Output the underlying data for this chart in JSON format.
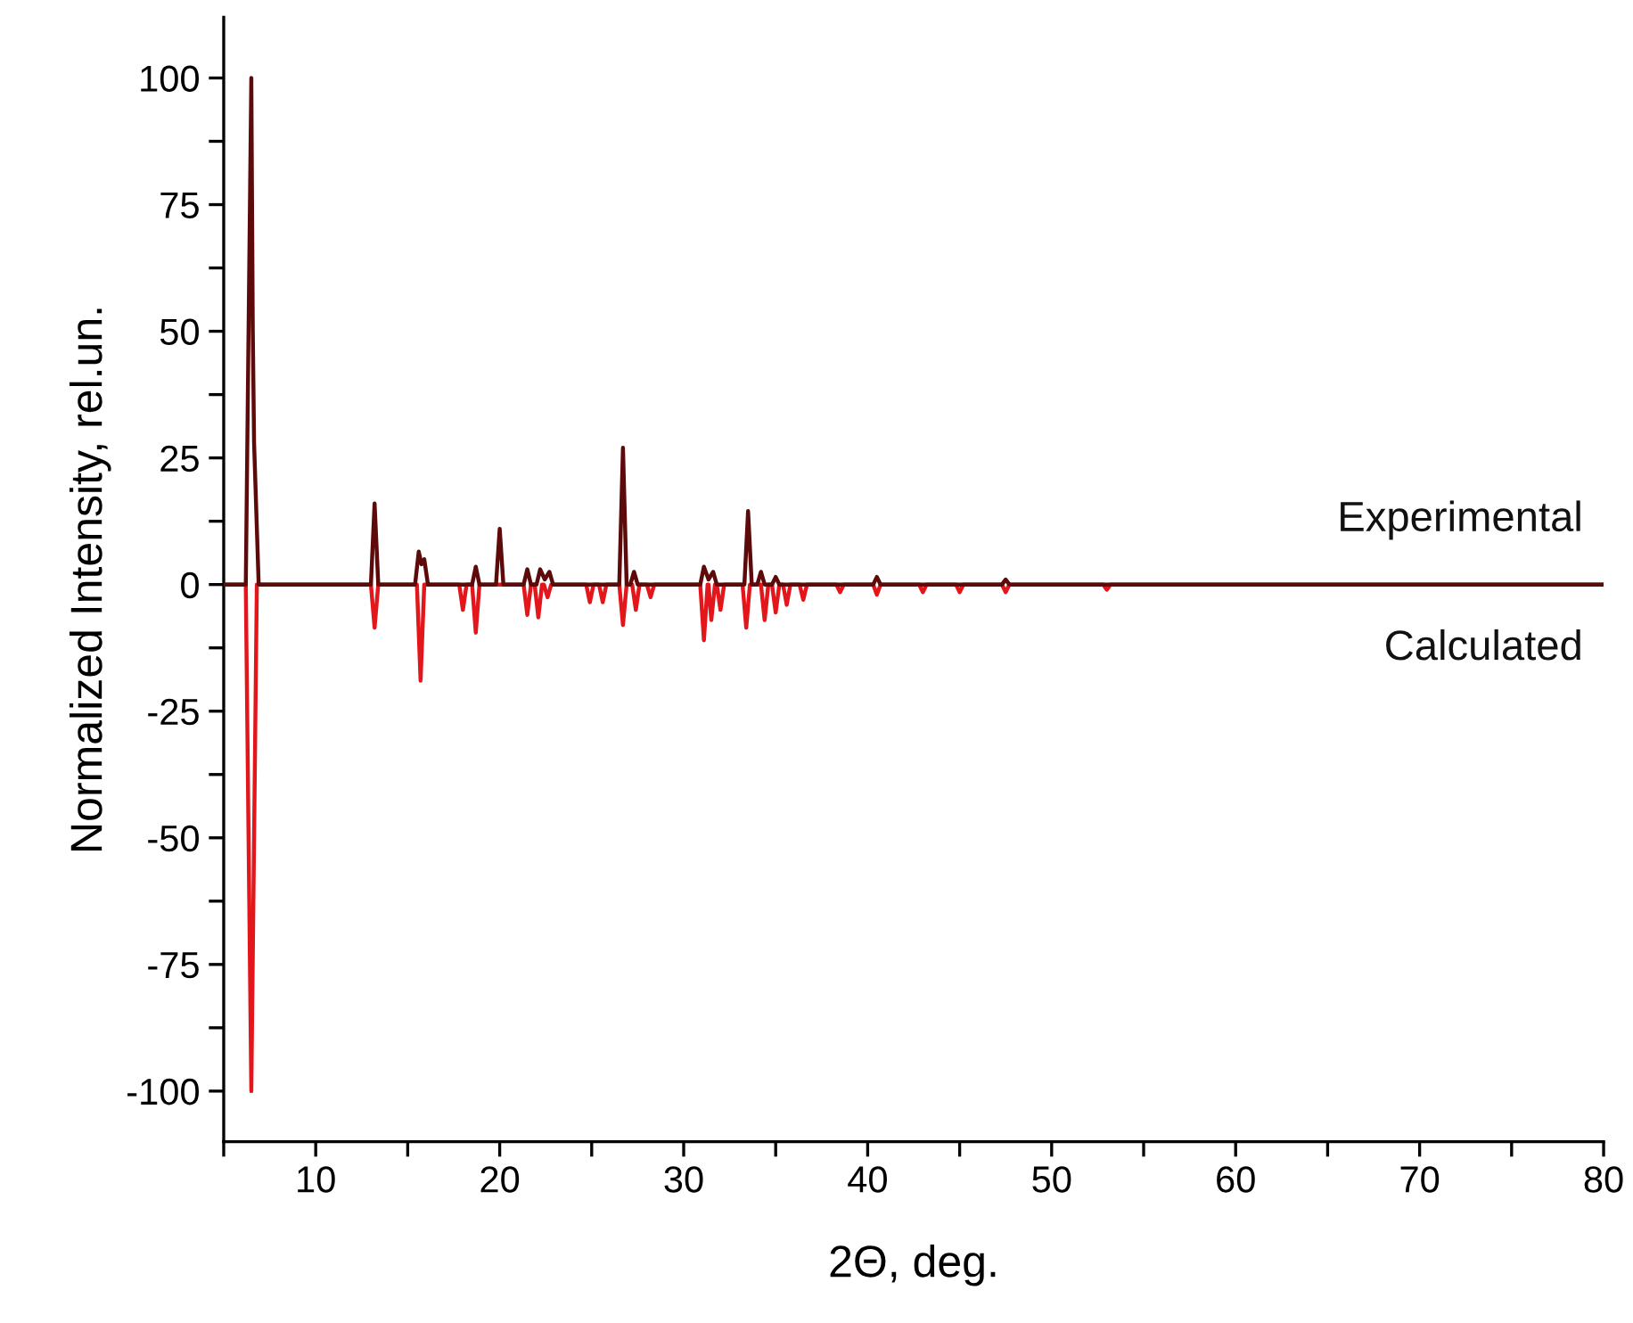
{
  "chart_data": {
    "type": "line",
    "xlabel": "2Θ, deg.",
    "ylabel": "Normalized Intensity, rel.un.",
    "xlim": [
      5,
      80
    ],
    "ylim": [
      -110,
      112
    ],
    "xticks": [
      {
        "value": 5,
        "label": null
      },
      10,
      {
        "value": 15,
        "label": null
      },
      20,
      {
        "value": 25,
        "label": null
      },
      30,
      {
        "value": 35,
        "label": null
      },
      40,
      {
        "value": 45,
        "label": null
      },
      50,
      {
        "value": 55,
        "label": null
      },
      60,
      {
        "value": 65,
        "label": null
      },
      70,
      {
        "value": 75,
        "label": null
      },
      80
    ],
    "yticks": [
      -100,
      {
        "value": -87.5,
        "label": null
      },
      -75,
      {
        "value": -62.5,
        "label": null
      },
      -50,
      {
        "value": -37.5,
        "label": null
      },
      -25,
      {
        "value": -12.5,
        "label": null
      },
      0,
      {
        "value": 12.5,
        "label": null
      },
      25,
      {
        "value": 37.5,
        "label": null
      },
      50,
      {
        "value": 62.5,
        "label": null
      },
      75,
      {
        "value": 87.5,
        "label": null
      },
      100
    ],
    "grid": false,
    "legend": false,
    "line_style": "solid",
    "marker": "none",
    "series": [
      {
        "name": "Calculated",
        "color": "#e3161b",
        "x": [
          5,
          6.2,
          6.5,
          6.8,
          13.0,
          13.2,
          13.4,
          15.5,
          15.7,
          15.9,
          17.8,
          18.0,
          18.2,
          18.5,
          18.7,
          18.9,
          21.3,
          21.5,
          21.7,
          21.9,
          22.1,
          22.3,
          22.4,
          22.6,
          22.8,
          24.7,
          24.9,
          25.1,
          25.4,
          25.6,
          25.8,
          26.5,
          26.7,
          26.9,
          27.2,
          27.4,
          27.6,
          28.0,
          28.2,
          28.4,
          30.9,
          31.1,
          31.3,
          31.35,
          31.5,
          31.7,
          31.8,
          32.0,
          32.2,
          33.2,
          33.4,
          33.6,
          34.2,
          34.4,
          34.6,
          34.8,
          35.0,
          35.2,
          35.4,
          35.6,
          35.8,
          36.3,
          36.5,
          36.7,
          38.3,
          38.5,
          38.7,
          40.3,
          40.5,
          40.7,
          42.8,
          43,
          43.2,
          44.8,
          45,
          45.2,
          47.3,
          47.5,
          47.7,
          52.8,
          53,
          53.2,
          80
        ],
        "values": [
          0,
          0,
          -100,
          0,
          0,
          -8.5,
          0,
          0,
          -19,
          0,
          0,
          -5,
          0,
          0,
          -9.5,
          0,
          0,
          -6,
          0,
          0,
          -6.5,
          0,
          0,
          -2.5,
          0,
          0,
          -3.5,
          0,
          0,
          -3.5,
          0,
          0,
          -8,
          0,
          0,
          -5,
          0,
          0,
          -2.5,
          0,
          0,
          -11,
          0,
          0,
          -7,
          0,
          0,
          -5,
          0,
          0,
          -8.5,
          0,
          0,
          -7,
          0,
          0,
          -5.5,
          0,
          0,
          -4,
          0,
          0,
          -3,
          0,
          0,
          -1.5,
          0,
          0,
          -2,
          0,
          0,
          -1.5,
          0,
          0,
          -1.5,
          0,
          0,
          -1.5,
          0,
          0,
          -1,
          0,
          0
        ]
      },
      {
        "name": "Experimental",
        "color": "#5c0a0a",
        "x": [
          5,
          6.2,
          6.5,
          6.58,
          6.65,
          6.9,
          13.0,
          13.2,
          13.4,
          15.4,
          15.6,
          15.75,
          15.9,
          16.1,
          18.5,
          18.7,
          18.9,
          19.8,
          20.0,
          20.2,
          21.3,
          21.5,
          21.7,
          22.0,
          22.2,
          22.45,
          22.7,
          22.9,
          26.5,
          26.7,
          26.9,
          27.1,
          27.3,
          27.5,
          30.9,
          31.1,
          31.35,
          31.6,
          31.8,
          33.3,
          33.5,
          33.7,
          34.0,
          34.2,
          34.4,
          34.8,
          35.0,
          35.2,
          40.3,
          40.5,
          40.7,
          47.3,
          47.5,
          47.7,
          80
        ],
        "values": [
          0,
          0,
          100,
          50,
          28,
          0,
          0,
          16,
          0,
          0,
          6.5,
          4,
          5,
          0,
          0,
          3.5,
          0,
          0,
          11,
          0,
          0,
          3,
          0,
          0,
          3,
          1,
          2.5,
          0,
          0,
          27,
          0,
          0,
          2.5,
          0,
          0,
          3.5,
          1,
          2.5,
          0,
          0,
          14.5,
          0,
          0,
          2.5,
          0,
          0,
          1.5,
          0,
          0,
          1.5,
          0,
          0,
          1,
          0,
          0
        ]
      }
    ]
  }
}
